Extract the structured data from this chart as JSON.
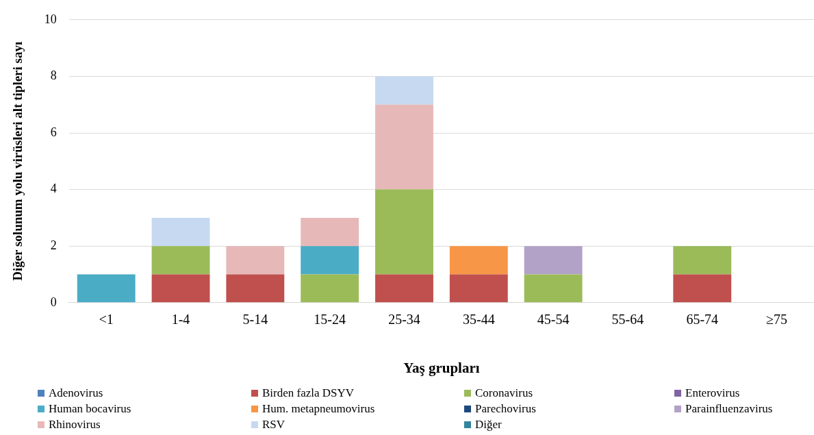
{
  "chart_data": {
    "type": "bar",
    "stacked": true,
    "xlabel": "Yaş grupları",
    "ylabel": "Diğer solunum yolu virüsleri alt tipleri sayı",
    "categories": [
      "<1",
      "1-4",
      "5-14",
      "15-24",
      "25-34",
      "35-44",
      "45-54",
      "55-64",
      "65-74",
      "≥75"
    ],
    "ylim": [
      0,
      10
    ],
    "yticks": [
      0,
      2,
      4,
      6,
      8,
      10
    ],
    "grid": "y",
    "legend": "bottom",
    "series": [
      {
        "name": "Adenovirus",
        "color": "#4f81bd",
        "values": [
          0,
          0,
          0,
          0,
          0,
          0,
          0,
          0,
          0,
          0
        ]
      },
      {
        "name": "Birden fazla DSYV",
        "color": "#c0504d",
        "values": [
          0,
          1,
          1,
          0,
          1,
          1,
          0,
          0,
          1,
          0
        ]
      },
      {
        "name": "Coronavirus",
        "color": "#9bbb59",
        "values": [
          0,
          1,
          0,
          1,
          3,
          0,
          1,
          0,
          1,
          0
        ]
      },
      {
        "name": "Enterovirus",
        "color": "#8064a2",
        "values": [
          0,
          0,
          0,
          0,
          0,
          0,
          0,
          0,
          0,
          0
        ]
      },
      {
        "name": "Human bocavirus",
        "color": "#4bacc6",
        "values": [
          1,
          0,
          0,
          1,
          0,
          0,
          0,
          0,
          0,
          0
        ]
      },
      {
        "name": "Hum. metapneumovirus",
        "color": "#f79646",
        "values": [
          0,
          0,
          0,
          0,
          0,
          1,
          0,
          0,
          0,
          0
        ]
      },
      {
        "name": "Parechovirus",
        "color": "#1f497d",
        "values": [
          0,
          0,
          0,
          0,
          0,
          0,
          0,
          0,
          0,
          0
        ]
      },
      {
        "name": "Parainfluenzavirus",
        "color": "#b3a2c7",
        "values": [
          0,
          0,
          0,
          0,
          0,
          0,
          1,
          0,
          0,
          0
        ]
      },
      {
        "name": "Rhinovirus",
        "color": "#e6b9b8",
        "values": [
          0,
          0,
          1,
          1,
          3,
          0,
          0,
          0,
          0,
          0
        ]
      },
      {
        "name": "RSV",
        "color": "#c6d9f1",
        "values": [
          0,
          1,
          0,
          0,
          1,
          0,
          0,
          0,
          0,
          0
        ]
      },
      {
        "name": "Diğer",
        "color": "#31859c",
        "values": [
          0,
          0,
          0,
          0,
          0,
          0,
          0,
          0,
          0,
          0
        ]
      }
    ]
  }
}
